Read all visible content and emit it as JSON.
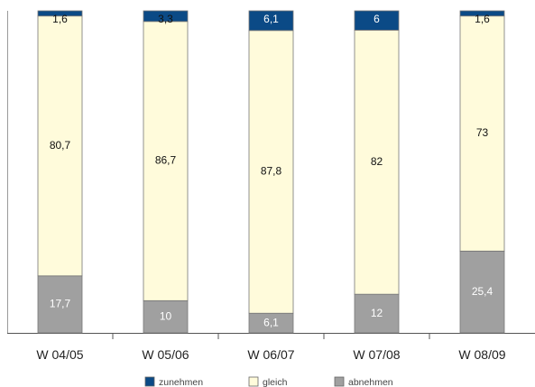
{
  "chart_data": {
    "type": "bar",
    "stacked": true,
    "categories": [
      "W 04/05",
      "W 05/06",
      "W 06/07",
      "W 07/08",
      "W 08/09"
    ],
    "series": [
      {
        "name": "abnehmen",
        "color": "#a0a0a0",
        "label_color": "#ffffff",
        "values": [
          17.7,
          10,
          6.1,
          12,
          25.4
        ],
        "labels": [
          "17,7",
          "10",
          "6,1",
          "12",
          "25,4"
        ]
      },
      {
        "name": "gleich",
        "color": "#fffbdb",
        "label_color": "#111111",
        "values": [
          80.7,
          86.7,
          87.8,
          82,
          73
        ],
        "labels": [
          "80,7",
          "86,7",
          "87,8",
          "82",
          "73"
        ]
      },
      {
        "name": "zunehmen",
        "color": "#0b4a86",
        "label_color": "#ffffff",
        "values": [
          1.6,
          3.3,
          6.1,
          6,
          1.6
        ],
        "labels": [
          "1,6",
          "3,3",
          "6,1",
          "6",
          "1,6"
        ]
      }
    ],
    "top_label_colors": [
      "#111111",
      "#111111",
      "#ffffff",
      "#ffffff",
      "#111111"
    ],
    "ylim": [
      0,
      100
    ],
    "legend_position": "bottom",
    "legend_order": [
      "zunehmen",
      "gleich",
      "abnehmen"
    ],
    "grid": false
  }
}
